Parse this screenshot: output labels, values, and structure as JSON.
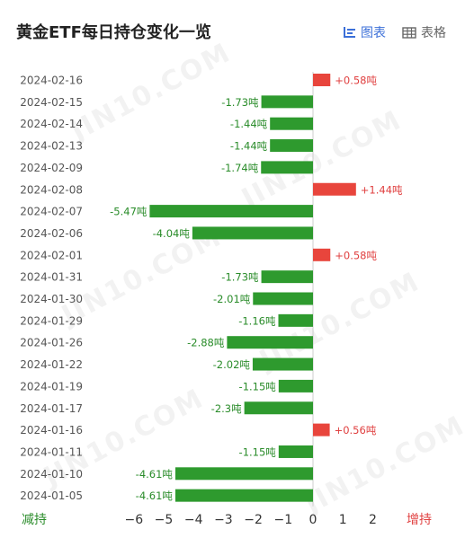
{
  "title": "黄金ETF每日持仓变化一览",
  "view_toggle": {
    "chart_label": "图表",
    "table_label": "表格"
  },
  "legend": {
    "left_label": "减持",
    "right_label": "增持"
  },
  "watermark_text": "JIN10.COM",
  "colors": {
    "increase": "#e8453c",
    "decrease": "#2e9a2e",
    "accent": "#3b6fd8"
  },
  "chart_data": {
    "type": "bar",
    "orientation": "horizontal",
    "title": "黄金ETF每日持仓变化一览",
    "unit": "吨",
    "categories": [
      "2024-02-16",
      "2024-02-15",
      "2024-02-14",
      "2024-02-13",
      "2024-02-09",
      "2024-02-08",
      "2024-02-07",
      "2024-02-06",
      "2024-02-01",
      "2024-01-31",
      "2024-01-30",
      "2024-01-29",
      "2024-01-26",
      "2024-01-22",
      "2024-01-19",
      "2024-01-17",
      "2024-01-16",
      "2024-01-11",
      "2024-01-10",
      "2024-01-05"
    ],
    "values": [
      0.58,
      -1.73,
      -1.44,
      -1.44,
      -1.74,
      1.44,
      -5.47,
      -4.04,
      0.58,
      -1.73,
      -2.01,
      -1.16,
      -2.88,
      -2.02,
      -1.15,
      -2.3,
      0.56,
      -1.15,
      -4.61,
      -4.61
    ],
    "value_labels": [
      "+0.58吨",
      "-1.73吨",
      "-1.44吨",
      "-1.44吨",
      "-1.74吨",
      "+1.44吨",
      "-5.47吨",
      "-4.04吨",
      "+0.58吨",
      "-1.73吨",
      "-2.01吨",
      "-1.16吨",
      "-2.88吨",
      "-2.02吨",
      "-1.15吨",
      "-2.3吨",
      "+0.56吨",
      "-1.15吨",
      "-4.61吨",
      "-4.61吨"
    ],
    "xlim": [
      -6,
      2
    ],
    "x_ticks": [
      -6,
      -5,
      -4,
      -3,
      -2,
      -1,
      0,
      1,
      2
    ],
    "x_tick_labels": [
      "−6",
      "−5",
      "−4",
      "−3",
      "−2",
      "−1",
      "0",
      "1",
      "2"
    ],
    "grid": false
  }
}
